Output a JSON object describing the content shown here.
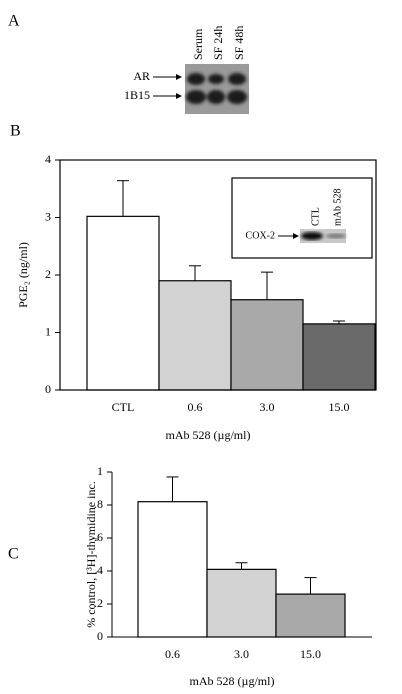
{
  "figure": {
    "panel_labels": [
      "A",
      "B",
      "C"
    ],
    "blot": {
      "lanes": [
        "Serum",
        "SF 24h",
        "SF 48h"
      ],
      "bands": [
        "AR",
        "1B15"
      ]
    }
  },
  "chart_data": [
    {
      "type": "bar",
      "categories": [
        "CTL",
        "0.6",
        "3.0",
        "15.0"
      ],
      "values": [
        3.02,
        1.9,
        1.57,
        1.15
      ],
      "errors": [
        0.62,
        0.26,
        0.48,
        0.05
      ],
      "colors": [
        "#ffffff",
        "#d2d2d2",
        "#a9a9a9",
        "#6a6a6a"
      ],
      "ylim": [
        0,
        4
      ],
      "yticks": [
        0,
        1,
        2,
        3,
        4
      ],
      "x_label": "mAb 528 (µg/ml)",
      "y_label": "PGE₂ (ng/ml)",
      "inset": {
        "band": "COX-2",
        "lanes": [
          "CTL",
          "mAb 528"
        ]
      }
    },
    {
      "type": "bar",
      "categories": [
        "0.6",
        "3.0",
        "15.0"
      ],
      "values": [
        0.82,
        0.41,
        0.26
      ],
      "errors": [
        0.15,
        0.04,
        0.1
      ],
      "colors": [
        "#ffffff",
        "#d2d2d2",
        "#a9a9a9"
      ],
      "ylim": [
        0,
        1
      ],
      "yticks": [
        0,
        {
          "value": 0.2,
          "label": ".2"
        },
        {
          "value": 0.4,
          "label": ".4"
        },
        {
          "value": 0.6,
          "label": ".6"
        },
        {
          "value": 0.8,
          "label": ".8"
        },
        1
      ],
      "x_label": "mAb 528 (µg/ml)",
      "y_label": "% control, [³H]-thymidine inc."
    }
  ]
}
